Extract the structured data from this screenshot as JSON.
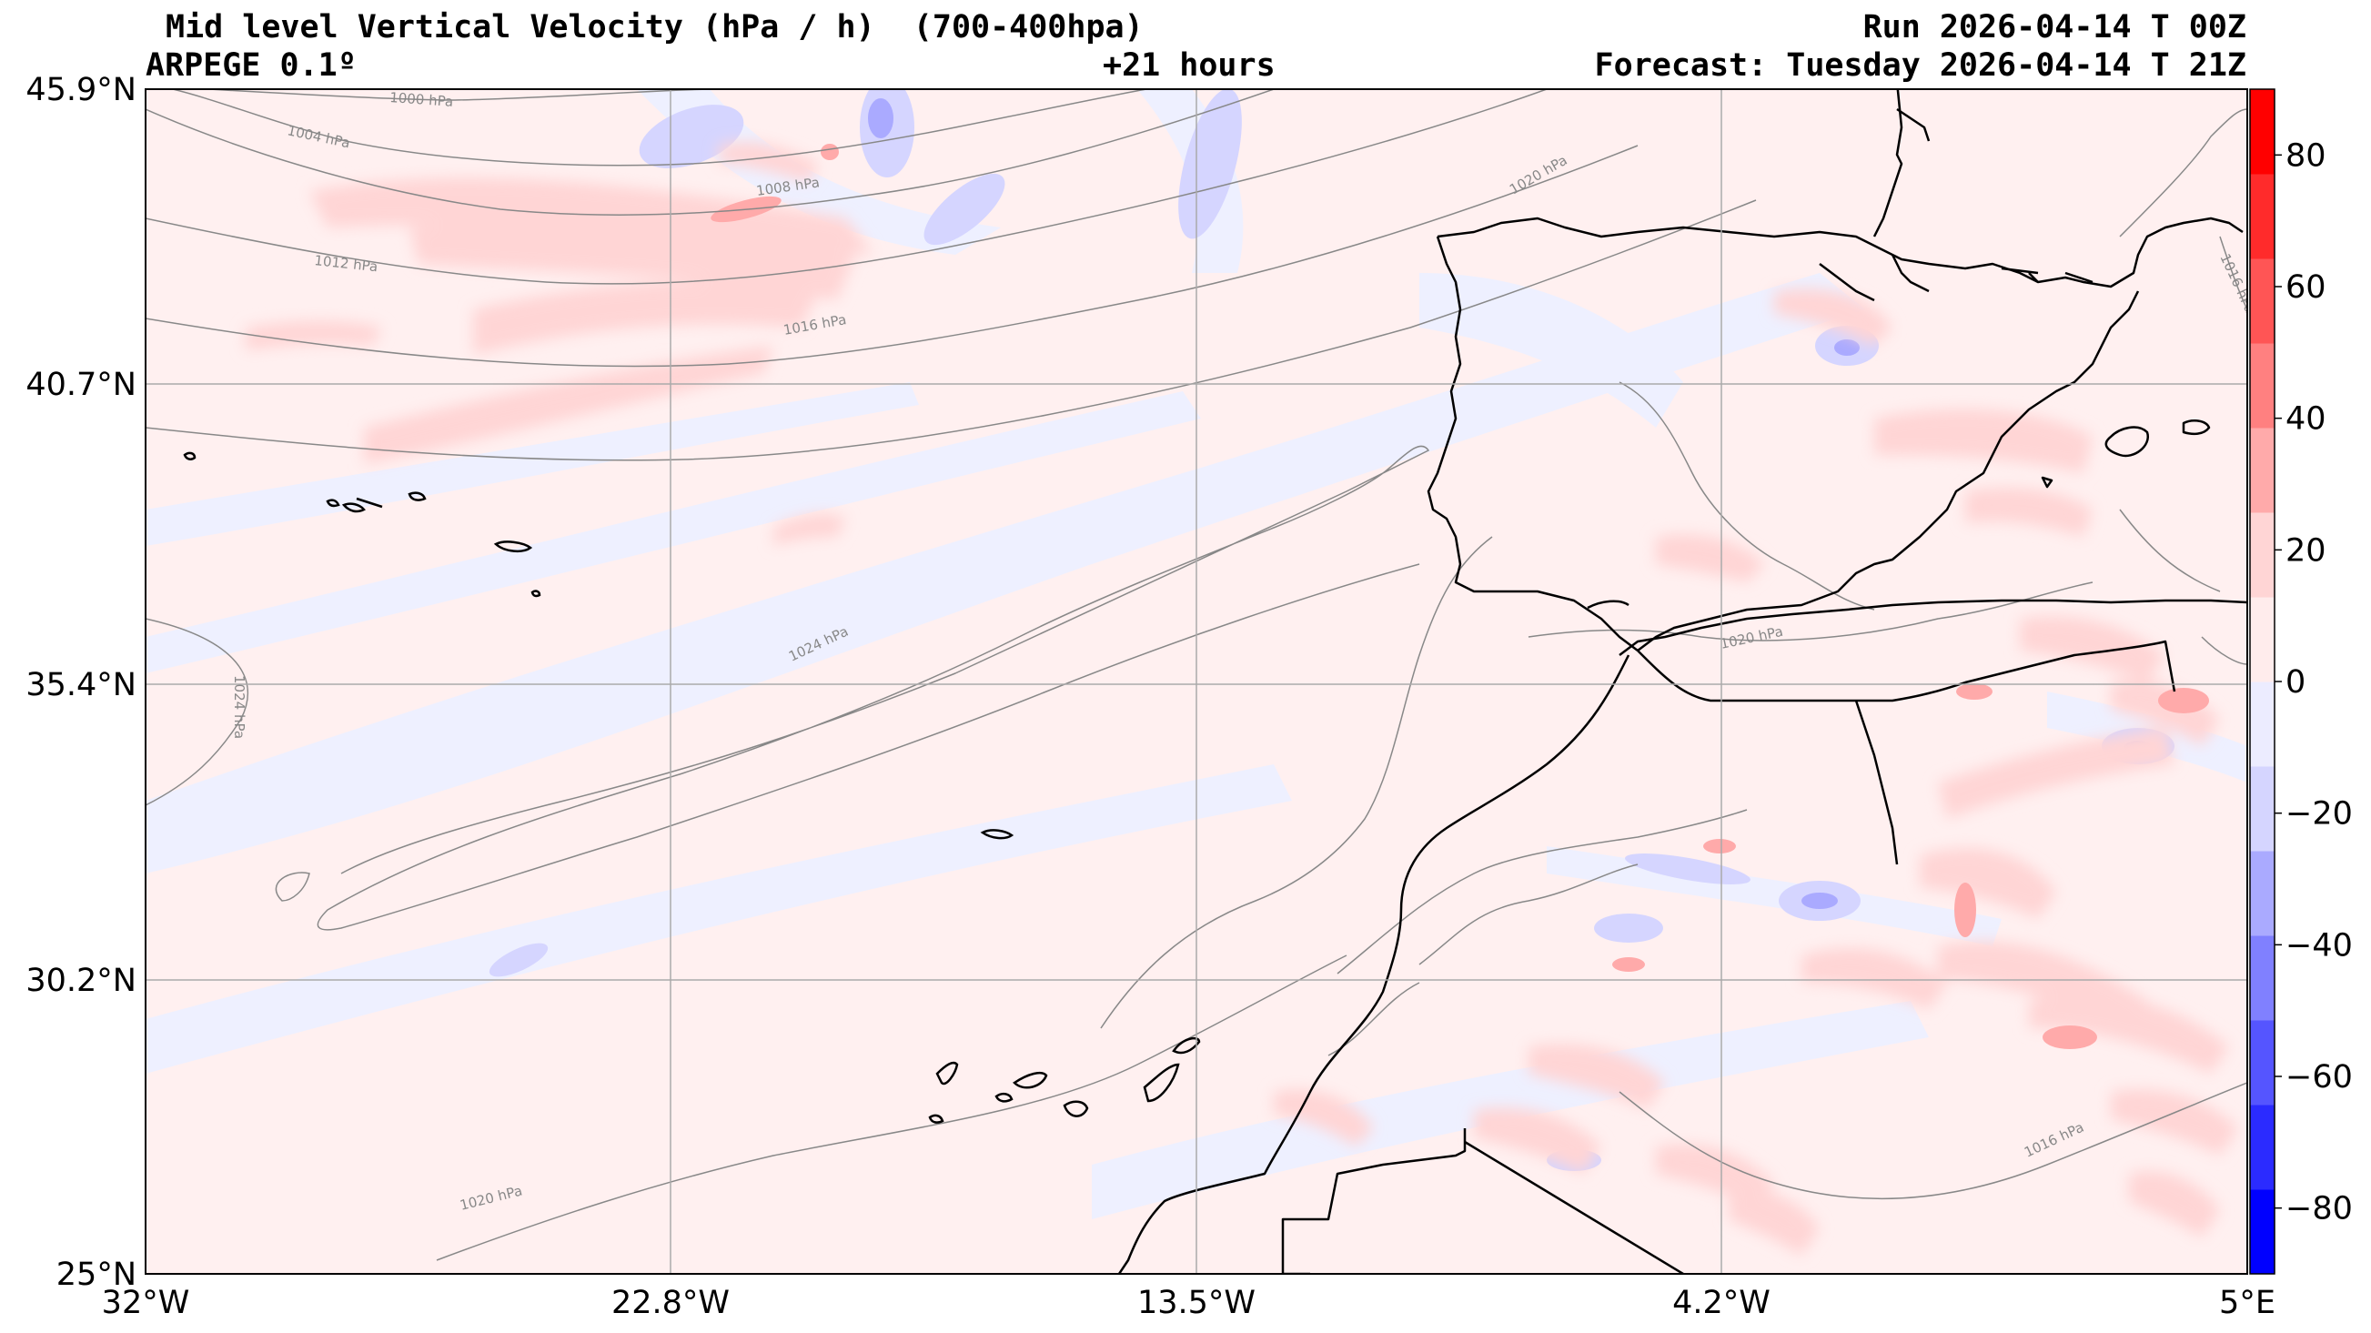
{
  "header": {
    "title": "Mid level Vertical Velocity (hPa / h)  (700-400hpa)",
    "model": "ARPEGE 0.1º",
    "lead_time": "+21 hours",
    "run": "Run 2026-04-14 T 00Z",
    "forecast": "Forecast: Tuesday 2026-04-14 T 21Z"
  },
  "axes": {
    "lat_labels": [
      "45.9°N",
      "40.7°N",
      "35.4°N",
      "30.2°N",
      "25°N"
    ],
    "lon_labels": [
      "32°W",
      "22.8°W",
      "13.5°W",
      "4.2°W",
      "5°E"
    ]
  },
  "colorbar": {
    "ticks": [
      "80",
      "60",
      "40",
      "20",
      "0",
      "−20",
      "−40",
      "−60",
      "−80"
    ],
    "min": -90,
    "max": 90,
    "colors": [
      "#0000ff",
      "#2b2bff",
      "#5555ff",
      "#8080ff",
      "#aaaaff",
      "#d5d5ff",
      "#ececff",
      "#ffecec",
      "#ffd5d5",
      "#ffaaaa",
      "#ff8080",
      "#ff5555",
      "#ff2b2b",
      "#ff0000"
    ]
  },
  "isobars": [
    "1000 hPa",
    "1004 hPa",
    "1008 hPa",
    "1012 hPa",
    "1016 hPa",
    "1020 hPa",
    "1024 hPa",
    "1024 hPa",
    "1020 hPa",
    "1020 hPa",
    "1016 hPa",
    "1016 hPa",
    "1020 hPa"
  ],
  "colors": {
    "background_positive": "#fff0f0",
    "background_negative": "#eef0ff",
    "coastline": "#000000",
    "gridline": "#aaaaaa",
    "isobar": "#888888"
  }
}
